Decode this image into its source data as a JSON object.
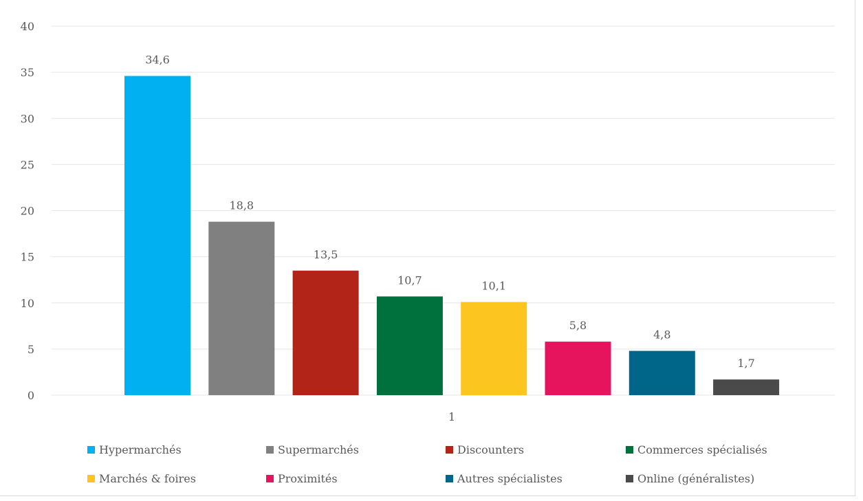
{
  "chart_data": {
    "type": "bar",
    "categories": [
      "1"
    ],
    "series": [
      {
        "name": "Hypermarchés",
        "value": 34.6,
        "label": "34,6",
        "color": "#00b0f0"
      },
      {
        "name": "Supermarchés",
        "value": 18.8,
        "label": "18,8",
        "color": "#808080"
      },
      {
        "name": "Discounters",
        "value": 13.5,
        "label": "13,5",
        "color": "#b22318"
      },
      {
        "name": "Commerces spécialisés",
        "value": 10.7,
        "label": "10,7",
        "color": "#00703c"
      },
      {
        "name": "Marchés & foires",
        "value": 10.1,
        "label": "10,1",
        "color": "#fcc520"
      },
      {
        "name": "Proximités",
        "value": 5.8,
        "label": "5,8",
        "color": "#e6135d"
      },
      {
        "name": "Autres spécialistes",
        "value": 4.8,
        "label": "4,8",
        "color": "#006689"
      },
      {
        "name": "Online (généralistes)",
        "value": 1.7,
        "label": "1,7",
        "color": "#4a4a4a"
      }
    ],
    "y_ticks": [
      0,
      5,
      10,
      15,
      20,
      25,
      30,
      35,
      40
    ],
    "ylim": [
      0,
      40
    ],
    "grid": true,
    "legend_position": "bottom",
    "title": "",
    "xlabel": "",
    "ylabel": ""
  }
}
